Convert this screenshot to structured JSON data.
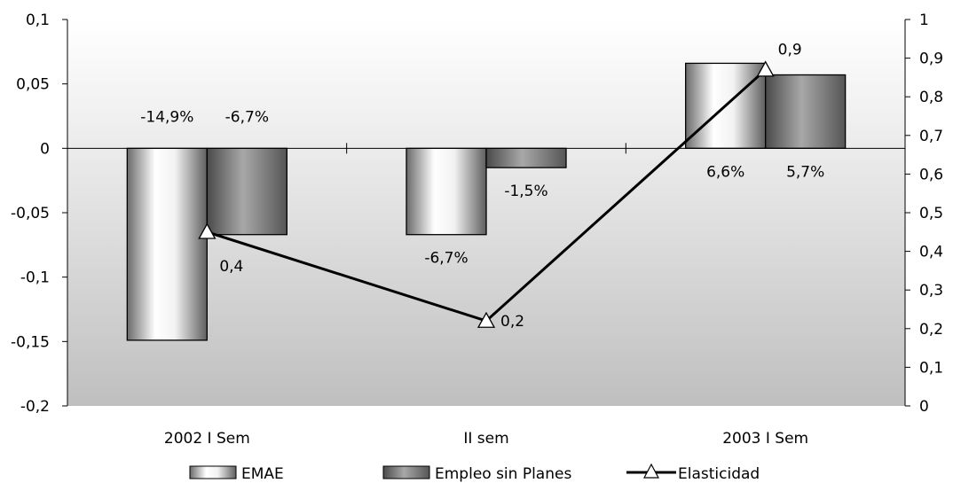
{
  "chart_data": {
    "type": "bar",
    "categories": [
      "2002 I Sem",
      "II sem",
      "2003 I Sem"
    ],
    "series": [
      {
        "name": "EMAE",
        "kind": "bar",
        "axis": "left",
        "values": [
          -0.149,
          -0.067,
          0.066
        ],
        "labels": [
          "-14,9%",
          "-6,7%",
          "6,6%"
        ]
      },
      {
        "name": "Empleo sin Planes",
        "kind": "bar",
        "axis": "left",
        "values": [
          -0.067,
          -0.015,
          0.057
        ],
        "labels": [
          "-6,7%",
          "-1,5%",
          "5,7%"
        ]
      },
      {
        "name": "Elasticidad",
        "kind": "line",
        "axis": "right",
        "values": [
          0.45,
          0.22,
          0.87
        ],
        "labels": [
          "0,4",
          "0,2",
          "0,9"
        ]
      }
    ],
    "left_axis": {
      "min": -0.2,
      "max": 0.1,
      "ticks": [
        "0,1",
        "0,05",
        "0",
        "-0,05",
        "-0,1",
        "-0,15",
        "-0,2"
      ]
    },
    "right_axis": {
      "min": 0,
      "max": 1,
      "ticks": [
        "1",
        "0,9",
        "0,8",
        "0,7",
        "0,6",
        "0,5",
        "0,4",
        "0,3",
        "0,2",
        "0,1",
        "0"
      ]
    },
    "title": "",
    "legend_position": "bottom",
    "colors": {
      "bar_light": "#f4f4f4",
      "bar_dark": "#7c7c7c",
      "line": "#000000",
      "plot_bg_top": "#ffffff",
      "plot_bg_bottom": "#c2c2c2"
    }
  }
}
